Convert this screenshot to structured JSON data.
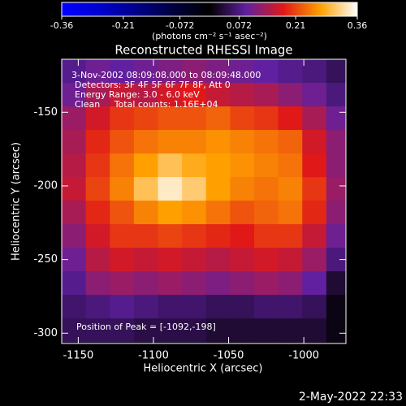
{
  "chart_data": {
    "type": "heatmap",
    "title": "Reconstructed RHESSI Image",
    "x_label": "Heliocentric X (arcsec)",
    "y_label": "Heliocentric Y (arcsec)",
    "colorbar_label": "(photons cm⁻² s⁻¹ asec⁻²)",
    "annotations": [
      "3-Nov-2002 08:09:08.000 to 08:09:48.000",
      "Detectors: 3F 4F 5F 6F 7F 8F, Att 0",
      "Energy Range: 3.0 - 6.0 keV",
      "Clean     Total counts: 1.16E+04"
    ],
    "peak_label": "Position of Peak = [-1092,-198]",
    "footer": "2-May-2022 22:33",
    "xlim": [
      -1161,
      -972
    ],
    "ylim": [
      -307,
      -114
    ],
    "xticks": [
      -1150,
      -1100,
      -1050,
      -1000
    ],
    "yticks": [
      -150,
      -200,
      -250,
      -300
    ],
    "zlim": [
      -0.36,
      0.36
    ],
    "zticks": [
      -0.36,
      -0.21,
      -0.072,
      0.072,
      0.21,
      0.36
    ],
    "colormap": [
      "#0000ff",
      "#0000d0",
      "#00008c",
      "#000040",
      "#000000",
      "#6020a0",
      "#e01818",
      "#ffa000",
      "#ffffff"
    ],
    "x": [
      -1153,
      -1137,
      -1121,
      -1105,
      -1089,
      -1073,
      -1057,
      -1041,
      -1025,
      -1009,
      -993,
      -977
    ],
    "y": [
      -122,
      -138,
      -154,
      -170,
      -186,
      -202,
      -218,
      -234,
      -250,
      -266,
      -282,
      -298
    ],
    "z": [
      [
        0.08,
        0.1,
        0.09,
        0.1,
        0.11,
        0.12,
        0.11,
        0.1,
        0.09,
        0.08,
        0.07,
        0.05
      ],
      [
        0.1,
        0.14,
        0.16,
        0.15,
        0.17,
        0.18,
        0.16,
        0.15,
        0.14,
        0.12,
        0.1,
        0.07
      ],
      [
        0.13,
        0.17,
        0.2,
        0.21,
        0.22,
        0.22,
        0.23,
        0.21,
        0.2,
        0.18,
        0.14,
        0.1
      ],
      [
        0.14,
        0.19,
        0.22,
        0.24,
        0.25,
        0.25,
        0.26,
        0.25,
        0.24,
        0.23,
        0.17,
        0.12
      ],
      [
        0.15,
        0.2,
        0.24,
        0.27,
        0.3,
        0.28,
        0.27,
        0.26,
        0.25,
        0.24,
        0.18,
        0.12
      ],
      [
        0.16,
        0.21,
        0.25,
        0.3,
        0.34,
        0.31,
        0.27,
        0.25,
        0.24,
        0.25,
        0.2,
        0.13
      ],
      [
        0.14,
        0.19,
        0.22,
        0.25,
        0.27,
        0.26,
        0.24,
        0.22,
        0.23,
        0.24,
        0.19,
        0.12
      ],
      [
        0.12,
        0.17,
        0.2,
        0.2,
        0.21,
        0.2,
        0.19,
        0.18,
        0.2,
        0.2,
        0.16,
        0.1
      ],
      [
        0.1,
        0.15,
        0.17,
        0.16,
        0.17,
        0.16,
        0.15,
        0.16,
        0.17,
        0.16,
        0.13,
        0.07
      ],
      [
        0.08,
        0.12,
        0.13,
        0.12,
        0.13,
        0.12,
        0.11,
        0.12,
        0.13,
        0.12,
        0.09,
        0.03
      ],
      [
        0.06,
        0.07,
        0.08,
        0.07,
        0.06,
        0.06,
        0.05,
        0.05,
        0.06,
        0.06,
        0.05,
        0.01
      ],
      [
        0.05,
        0.05,
        0.05,
        0.04,
        0.04,
        0.04,
        0.03,
        0.03,
        0.03,
        0.03,
        0.03,
        0.01
      ]
    ]
  }
}
